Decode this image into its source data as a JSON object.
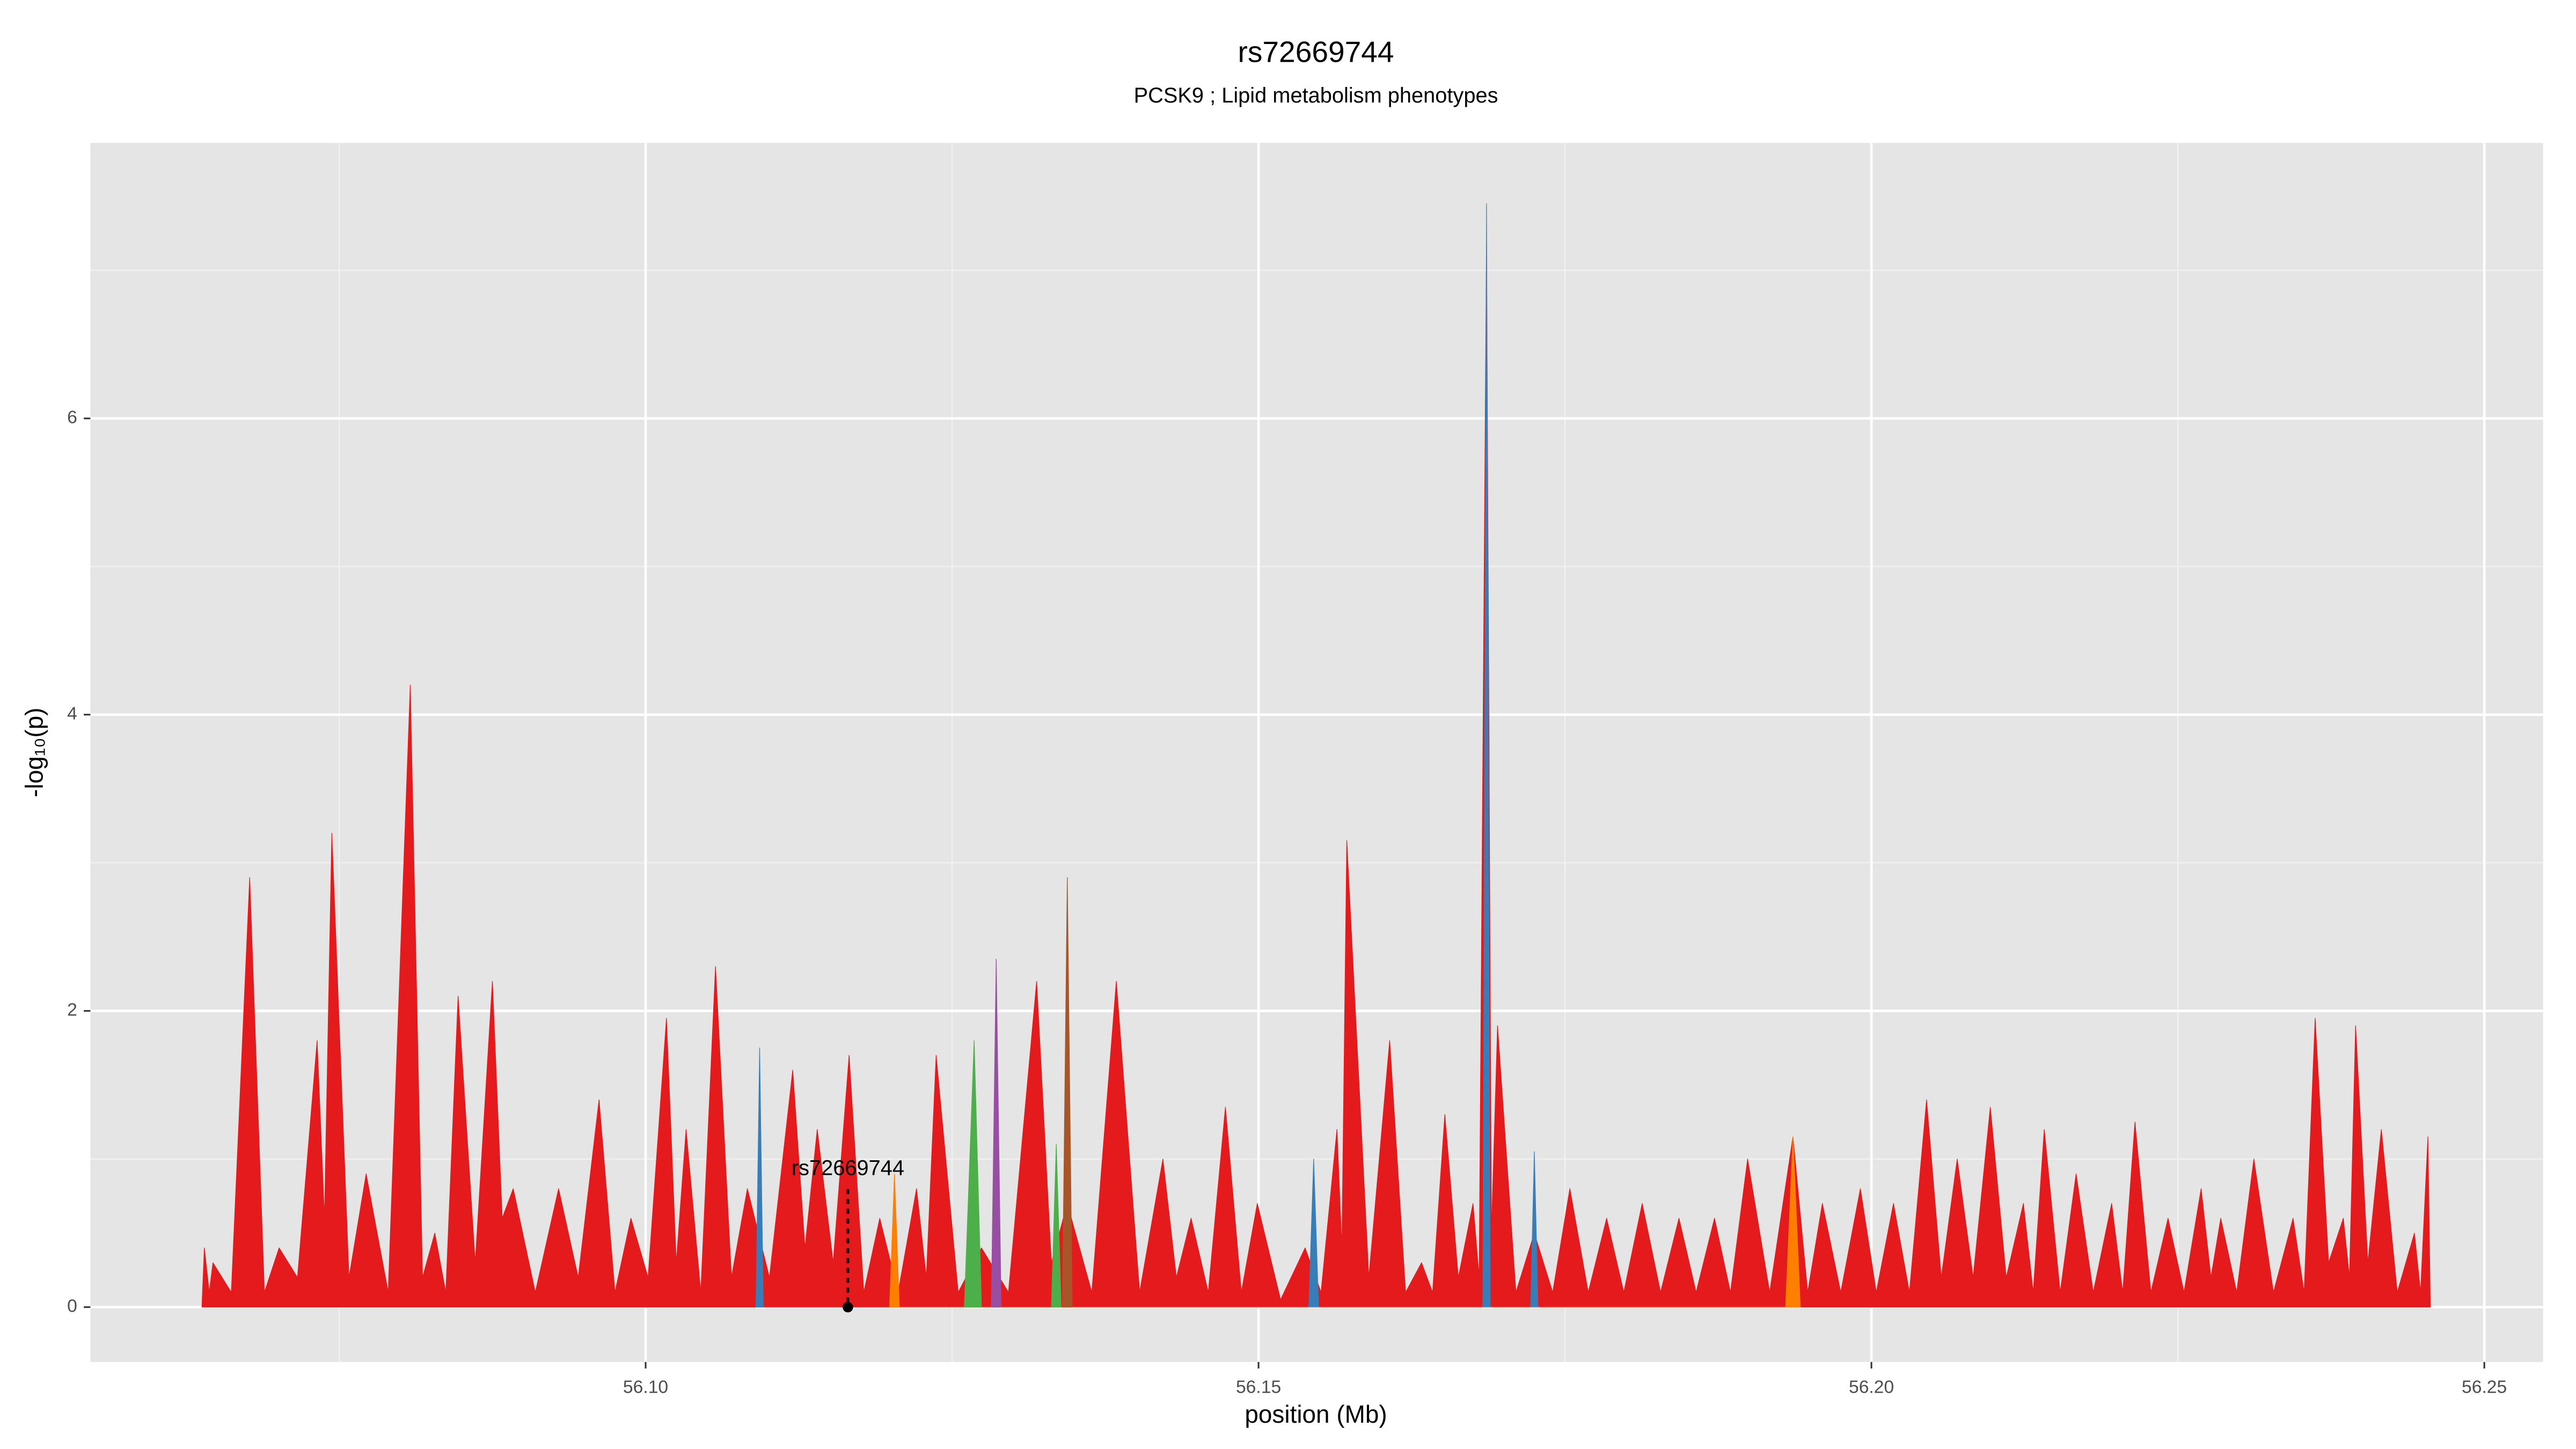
{
  "chart_data": {
    "type": "area",
    "title": "rs72669744",
    "subtitle": "PCSK9 ; Lipid metabolism phenotypes",
    "x_label": "position (Mb)",
    "y_label": "-log₁₀(p)",
    "xlim": [
      56.0547,
      56.2548
    ],
    "ylim": [
      -0.37,
      7.86
    ],
    "xticks": [
      {
        "value": 56.1,
        "label": "56.10"
      },
      56.15,
      {
        "value": 56.2,
        "label": "56.20"
      },
      56.25
    ],
    "yticks": [
      0,
      2,
      4,
      6
    ],
    "grid": true,
    "annotation": {
      "label": "rs72669744",
      "x": 56.1165,
      "y": 0.93
    },
    "series": [
      {
        "color": "#e41a1c",
        "x": [
          56.0638,
          56.064,
          56.0644,
          56.0647,
          56.0662,
          56.0677,
          56.0689,
          56.0701,
          56.0716,
          56.0732,
          56.0738,
          56.0744,
          56.0758,
          56.0772,
          56.079,
          56.0808,
          56.0818,
          56.0828,
          56.0837,
          56.0847,
          56.0861,
          56.0875,
          56.0883,
          56.0892,
          56.091,
          56.0929,
          56.0945,
          56.0962,
          56.0975,
          56.0988,
          56.1002,
          56.1017,
          56.1025,
          56.1033,
          56.1045,
          56.1057,
          56.107,
          56.1083,
          56.1101,
          56.112,
          56.113,
          56.114,
          56.1153,
          56.1166,
          56.1178,
          56.1191,
          56.1206,
          56.1221,
          56.1229,
          56.1237,
          56.1255,
          56.1274,
          56.1296,
          56.1319,
          56.1331,
          56.1344,
          56.1364,
          56.1384,
          56.1403,
          56.1422,
          56.1433,
          56.1445,
          56.1459,
          56.1473,
          56.1486,
          56.1499,
          56.1518,
          56.1538,
          56.1551,
          56.1564,
          56.1568,
          56.1572,
          56.159,
          56.1607,
          56.162,
          56.1633,
          56.1642,
          56.1652,
          56.1663,
          56.1675,
          56.168,
          56.1686,
          56.169,
          56.1695,
          56.171,
          56.1725,
          56.174,
          56.1754,
          56.1769,
          56.1784,
          56.1798,
          56.1813,
          56.1828,
          56.1843,
          56.1857,
          56.1872,
          56.1885,
          56.1899,
          56.1917,
          56.1936,
          56.1948,
          56.196,
          56.1975,
          56.1991,
          56.2004,
          56.2018,
          56.2031,
          56.2045,
          56.2057,
          56.207,
          56.2083,
          56.2097,
          56.211,
          56.2124,
          56.2132,
          56.2141,
          56.2154,
          56.2167,
          56.2181,
          56.2196,
          56.2205,
          56.2215,
          56.2228,
          56.2242,
          56.2255,
          56.2269,
          56.2277,
          56.2285,
          56.2298,
          56.2312,
          56.2328,
          56.2344,
          56.2353,
          56.2362,
          56.2373,
          56.2385,
          56.239,
          56.2395,
          56.2405,
          56.2416,
          56.2429,
          56.2443,
          56.2448,
          56.2454,
          56.2456
        ],
        "values": [
          0,
          0.4,
          0.1,
          0.3,
          0.1,
          2.9,
          0.1,
          0.4,
          0.2,
          1.8,
          0.6,
          3.2,
          0.2,
          0.9,
          0.1,
          4.2,
          0.2,
          0.5,
          0.1,
          2.1,
          0.3,
          2.2,
          0.6,
          0.8,
          0.1,
          0.8,
          0.2,
          1.4,
          0.1,
          0.6,
          0.2,
          1.95,
          0.3,
          1.2,
          0.1,
          2.3,
          0.2,
          0.8,
          0.2,
          1.6,
          0.4,
          1.2,
          0.3,
          1.7,
          0.1,
          0.6,
          0.1,
          0.8,
          0.2,
          1.7,
          0.1,
          0.4,
          0.1,
          2.2,
          0.3,
          0.7,
          0.1,
          2.2,
          0.1,
          1.0,
          0.2,
          0.6,
          0.1,
          1.35,
          0.1,
          0.7,
          0.05,
          0.4,
          0.1,
          1.2,
          0.4,
          3.15,
          0.2,
          1.8,
          0.1,
          0.3,
          0.1,
          1.3,
          0.2,
          0.7,
          0.2,
          7.2,
          0.5,
          1.9,
          0.1,
          0.5,
          0.1,
          0.8,
          0.1,
          0.6,
          0.1,
          0.7,
          0.1,
          0.6,
          0.1,
          0.6,
          0.1,
          1.0,
          0.1,
          1.15,
          0.1,
          0.7,
          0.1,
          0.8,
          0.1,
          0.7,
          0.1,
          1.4,
          0.2,
          1.0,
          0.2,
          1.35,
          0.2,
          0.7,
          0.1,
          1.2,
          0.1,
          0.9,
          0.1,
          0.7,
          0.1,
          1.25,
          0.1,
          0.6,
          0.1,
          0.8,
          0.2,
          0.6,
          0.1,
          1.0,
          0.1,
          0.6,
          0.1,
          1.95,
          0.3,
          0.6,
          0.2,
          1.9,
          0.3,
          1.2,
          0.1,
          0.5,
          0.1,
          1.15,
          0
        ]
      },
      {
        "color": "#377eb8",
        "x": [
          56.109,
          56.1093,
          56.1096,
          56.1541,
          56.1545,
          56.1549,
          56.1683,
          56.1686,
          56.1689,
          56.1722,
          56.1725,
          56.1728
        ],
        "values": [
          0,
          1.75,
          0,
          0,
          1.0,
          0,
          0,
          7.45,
          0,
          0,
          1.05,
          0
        ]
      },
      {
        "color": "#ff7f00",
        "x": [
          56.1199,
          56.1203,
          56.1207,
          56.193,
          56.1936,
          56.1942
        ],
        "values": [
          0,
          0.9,
          0,
          0,
          1.15,
          0
        ]
      },
      {
        "color": "#4daf4a",
        "x": [
          56.126,
          56.1268,
          56.1274,
          56.1331,
          56.1335,
          56.1339
        ],
        "values": [
          0,
          1.8,
          0,
          0,
          1.1,
          0
        ]
      },
      {
        "color": "#984ea3",
        "x": [
          56.1282,
          56.1286,
          56.129
        ],
        "values": [
          0,
          2.35,
          0
        ]
      },
      {
        "color": "#a65628",
        "x": [
          56.134,
          56.1344,
          56.1348
        ],
        "values": [
          0,
          2.9,
          0
        ]
      }
    ]
  }
}
